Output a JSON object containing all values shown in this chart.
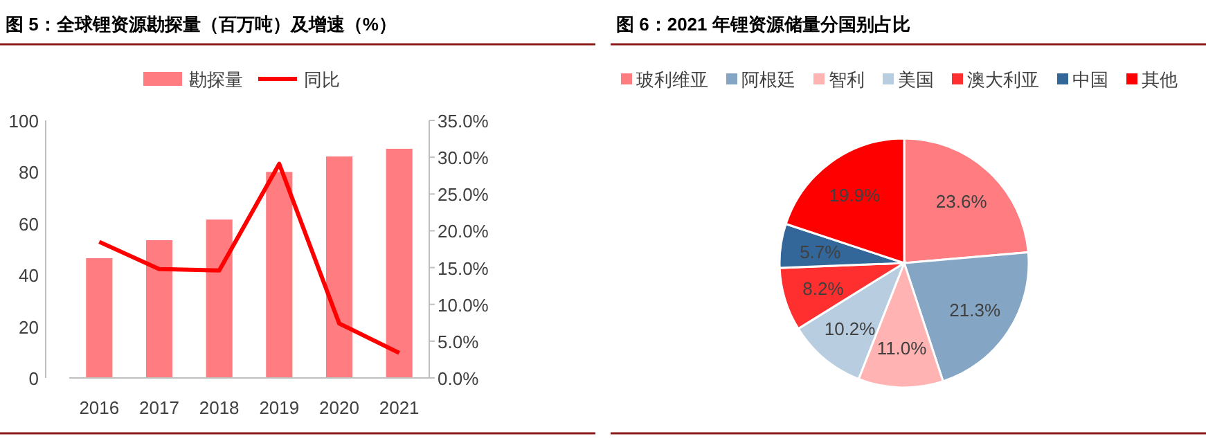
{
  "chart_data": [
    {
      "type": "bar",
      "title": "图 5：全球锂资源勘探量（百万吨）及增速（%）",
      "categories": [
        "2016",
        "2017",
        "2018",
        "2019",
        "2020",
        "2021"
      ],
      "series": [
        {
          "name": "勘探量",
          "color": "#ff7c80",
          "values": [
            46.5,
            53.5,
            61.5,
            80,
            86,
            89
          ]
        },
        {
          "name": "同比",
          "type": "line",
          "axis": "y2",
          "color": "#ff0000",
          "values": [
            18.5,
            14.8,
            14.6,
            29.1,
            7.4,
            3.4
          ]
        }
      ],
      "ylim": [
        0,
        100
      ],
      "yticks": [
        0,
        20,
        40,
        60,
        80,
        100
      ],
      "y2lim": [
        0,
        35
      ],
      "y2ticks": [
        {
          "value": 0,
          "label": "0.0%"
        },
        {
          "value": 5,
          "label": "5.0%"
        },
        {
          "value": 10,
          "label": "10.0%"
        },
        {
          "value": 15,
          "label": "15.0%"
        },
        {
          "value": 20,
          "label": "20.0%"
        },
        {
          "value": 25,
          "label": "25.0%"
        },
        {
          "value": 30,
          "label": "30.0%"
        },
        {
          "value": 35,
          "label": "35.0%"
        }
      ],
      "legend": "top"
    },
    {
      "type": "pie",
      "title": "图 6：2021 年锂资源储量分国别占比",
      "categories": [
        "玻利维亚",
        "阿根廷",
        "智利",
        "美国",
        "澳大利亚",
        "中国",
        "其他"
      ],
      "values": [
        23.6,
        21.3,
        11.0,
        10.2,
        8.2,
        5.7,
        19.9
      ],
      "colors": [
        "#ff7c80",
        "#84a6c4",
        "#ffb3b3",
        "#b8cde0",
        "#ff2f2f",
        "#336699",
        "#ff0000"
      ],
      "value_labels": [
        "23.6%",
        "21.3%",
        "11.0%",
        "10.2%",
        "8.2%",
        "5.7%",
        "19.9%"
      ],
      "legend": "top"
    }
  ]
}
